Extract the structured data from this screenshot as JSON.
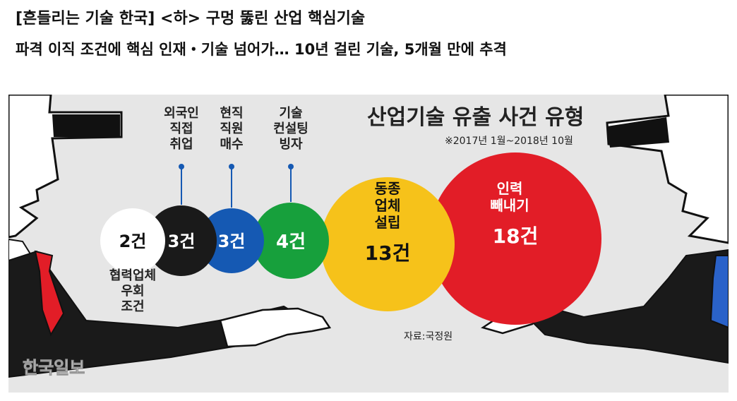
{
  "headline": {
    "line1": "[흔들리는 기술 한국] <하> 구멍 뚫린 산업 핵심기술",
    "line2": "파격 이직 조건에 핵심 인재・기술 넘어가… 10년 걸린 기술, 5개월 만에 추격"
  },
  "watermark": "한국일보",
  "chart_data": {
    "type": "bubble",
    "title": "산업기술 유출 사건 유형",
    "subtitle": "※2017년 1월~2018년 10월",
    "source": "자료:국정원",
    "unit": "건",
    "categories": [
      {
        "label": "협력업체 우회 조건",
        "value": 2,
        "value_label": "2건",
        "color": "#ffffff",
        "text_color": "#111111"
      },
      {
        "label": "외국인 직접 취업",
        "value": 3,
        "value_label": "3건",
        "color": "#1a1a1a",
        "text_color": "#ffffff"
      },
      {
        "label": "현직 직원 매수",
        "value": 3,
        "value_label": "3건",
        "color": "#1559b3",
        "text_color": "#ffffff"
      },
      {
        "label": "기술 컨설팅 빙자",
        "value": 4,
        "value_label": "4건",
        "color": "#17a03c",
        "text_color": "#ffffff"
      },
      {
        "label": "동종 업체 설립",
        "value": 13,
        "value_label": "13건",
        "color": "#f6c21a",
        "text_color": "#111111"
      },
      {
        "label": "인력 빼내기",
        "value": 18,
        "value_label": "18건",
        "color": "#e21d27",
        "text_color": "#ffffff"
      }
    ]
  },
  "colors": {
    "background": "#e6e6e6",
    "ink": "#111111",
    "leader": "#1559b3",
    "tie_left": "#e21d27",
    "tie_right": "#2a62c9"
  }
}
